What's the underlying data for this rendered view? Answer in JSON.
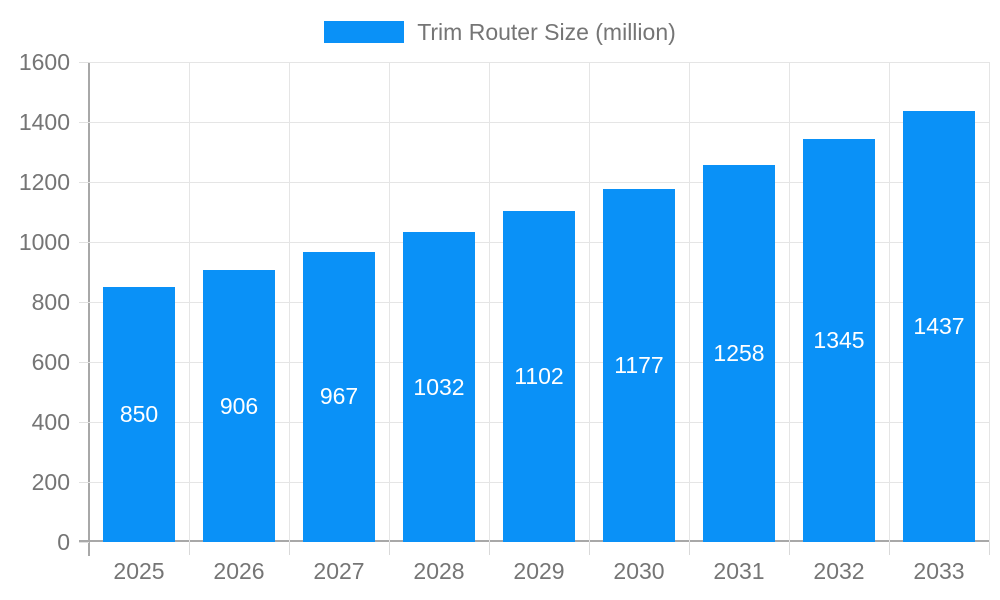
{
  "legend": {
    "label": "Trim Router Size (million)"
  },
  "chart_data": {
    "type": "bar",
    "title": "Trim Router Size (million)",
    "categories": [
      "2025",
      "2026",
      "2027",
      "2028",
      "2029",
      "2030",
      "2031",
      "2032",
      "2033"
    ],
    "values": [
      850,
      906,
      967,
      1032,
      1102,
      1177,
      1258,
      1345,
      1437
    ],
    "xlabel": "",
    "ylabel": "",
    "ylim": [
      0,
      1600
    ],
    "yticks": [
      0,
      200,
      400,
      600,
      800,
      1000,
      1200,
      1400,
      1600
    ],
    "grid": true,
    "legend_position": "top",
    "bar_color": "#0a91f7",
    "value_label_color": "#ffffff",
    "gridline_color": "#e5e5e5",
    "axis_color": "#a8a8a8",
    "tick_label_color": "#757575"
  }
}
